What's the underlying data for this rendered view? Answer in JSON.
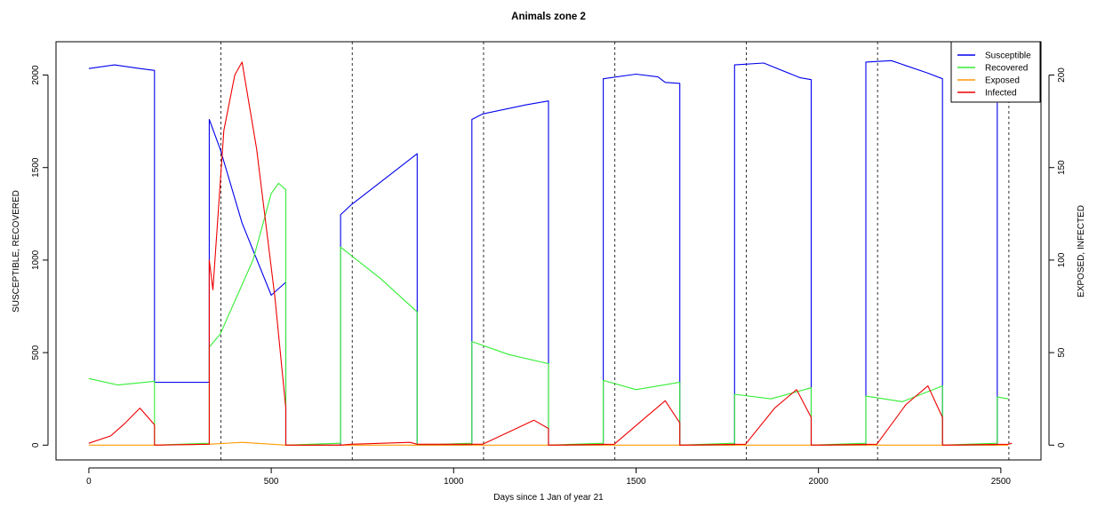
{
  "chart_data": {
    "type": "line",
    "title": "Animals zone 2",
    "xlabel": "Days since 1 Jan of year 21",
    "ylabel_left": "SUSCEPTIBLE, RECOVERED",
    "ylabel_right": "EXPOSED, INFECTED",
    "xlim": [
      -90,
      2610
    ],
    "ylim_left": [
      -80,
      2180
    ],
    "ylim_right": [
      -8,
      218
    ],
    "x_ticks": [
      0,
      500,
      1000,
      1500,
      2000,
      2500
    ],
    "y_ticks_left": [
      0,
      500,
      1000,
      1500,
      2000
    ],
    "y_ticks_right": [
      0,
      50,
      100,
      150,
      200
    ],
    "vlines": [
      362,
      722,
      1082,
      1442,
      1802,
      2162,
      2522
    ],
    "grid": false,
    "legend_position": "top-right",
    "series": [
      {
        "name": "Susceptible",
        "axis": "left",
        "color": "#0000ee",
        "points": [
          [
            0,
            2035
          ],
          [
            70,
            2055
          ],
          [
            140,
            2035
          ],
          [
            180,
            2025
          ],
          [
            180,
            340
          ],
          [
            330,
            340
          ],
          [
            330,
            1760
          ],
          [
            360,
            1600
          ],
          [
            420,
            1200
          ],
          [
            500,
            810
          ],
          [
            540,
            880
          ],
          [
            540,
            0
          ],
          [
            690,
            0
          ],
          [
            690,
            1245
          ],
          [
            720,
            1300
          ],
          [
            900,
            1575
          ],
          [
            900,
            0
          ],
          [
            1050,
            0
          ],
          [
            1050,
            1760
          ],
          [
            1080,
            1790
          ],
          [
            1200,
            1840
          ],
          [
            1260,
            1860
          ],
          [
            1260,
            0
          ],
          [
            1410,
            0
          ],
          [
            1410,
            1980
          ],
          [
            1500,
            2005
          ],
          [
            1560,
            1990
          ],
          [
            1580,
            1960
          ],
          [
            1620,
            1955
          ],
          [
            1620,
            0
          ],
          [
            1770,
            0
          ],
          [
            1770,
            2055
          ],
          [
            1850,
            2065
          ],
          [
            1950,
            1985
          ],
          [
            1980,
            1975
          ],
          [
            1980,
            0
          ],
          [
            2130,
            0
          ],
          [
            2130,
            2070
          ],
          [
            2200,
            2078
          ],
          [
            2300,
            2010
          ],
          [
            2340,
            1980
          ],
          [
            2340,
            0
          ],
          [
            2490,
            0
          ],
          [
            2490,
            1850
          ]
        ]
      },
      {
        "name": "Recovered",
        "axis": "left",
        "color": "#33ee33",
        "points": [
          [
            0,
            360
          ],
          [
            80,
            325
          ],
          [
            180,
            345
          ],
          [
            180,
            0
          ],
          [
            330,
            10
          ],
          [
            330,
            530
          ],
          [
            360,
            600
          ],
          [
            450,
            1000
          ],
          [
            500,
            1360
          ],
          [
            520,
            1415
          ],
          [
            540,
            1380
          ],
          [
            540,
            0
          ],
          [
            690,
            10
          ],
          [
            690,
            1070
          ],
          [
            800,
            900
          ],
          [
            900,
            720
          ],
          [
            900,
            0
          ],
          [
            1050,
            10
          ],
          [
            1050,
            560
          ],
          [
            1150,
            490
          ],
          [
            1260,
            440
          ],
          [
            1260,
            0
          ],
          [
            1410,
            10
          ],
          [
            1410,
            350
          ],
          [
            1500,
            300
          ],
          [
            1620,
            340
          ],
          [
            1620,
            0
          ],
          [
            1770,
            10
          ],
          [
            1770,
            275
          ],
          [
            1870,
            250
          ],
          [
            1980,
            310
          ],
          [
            1980,
            0
          ],
          [
            2130,
            10
          ],
          [
            2130,
            265
          ],
          [
            2230,
            235
          ],
          [
            2340,
            320
          ],
          [
            2340,
            0
          ],
          [
            2490,
            10
          ],
          [
            2490,
            260
          ],
          [
            2520,
            250
          ]
        ]
      },
      {
        "name": "Exposed",
        "axis": "right",
        "color": "#ff9900",
        "points": [
          [
            0,
            0
          ],
          [
            180,
            0
          ],
          [
            330,
            0.5
          ],
          [
            420,
            1.5
          ],
          [
            540,
            0
          ],
          [
            900,
            0
          ],
          [
            1260,
            0
          ],
          [
            1620,
            0
          ],
          [
            1980,
            0
          ],
          [
            2340,
            0
          ],
          [
            2520,
            0
          ]
        ]
      },
      {
        "name": "Infected",
        "axis": "right",
        "color": "#ee0000",
        "points": [
          [
            0,
            1
          ],
          [
            60,
            5
          ],
          [
            100,
            12
          ],
          [
            140,
            20
          ],
          [
            180,
            11
          ],
          [
            180,
            0
          ],
          [
            330,
            0.5
          ],
          [
            330,
            100
          ],
          [
            340,
            84
          ],
          [
            370,
            170
          ],
          [
            400,
            200
          ],
          [
            420,
            207
          ],
          [
            460,
            160
          ],
          [
            510,
            80
          ],
          [
            540,
            20
          ],
          [
            540,
            0
          ],
          [
            690,
            0
          ],
          [
            720,
            0.5
          ],
          [
            880,
            1.5
          ],
          [
            900,
            0.5
          ],
          [
            1080,
            0.5
          ],
          [
            1150,
            7
          ],
          [
            1220,
            13.5
          ],
          [
            1260,
            9
          ],
          [
            1260,
            0
          ],
          [
            1440,
            0.5
          ],
          [
            1520,
            14
          ],
          [
            1580,
            24
          ],
          [
            1620,
            12
          ],
          [
            1620,
            0
          ],
          [
            1800,
            0.5
          ],
          [
            1880,
            20
          ],
          [
            1940,
            30
          ],
          [
            1980,
            15
          ],
          [
            1980,
            0
          ],
          [
            2160,
            0.5
          ],
          [
            2240,
            22
          ],
          [
            2300,
            32
          ],
          [
            2340,
            15
          ],
          [
            2340,
            0
          ],
          [
            2520,
            0.5
          ],
          [
            2530,
            1
          ]
        ]
      }
    ]
  }
}
